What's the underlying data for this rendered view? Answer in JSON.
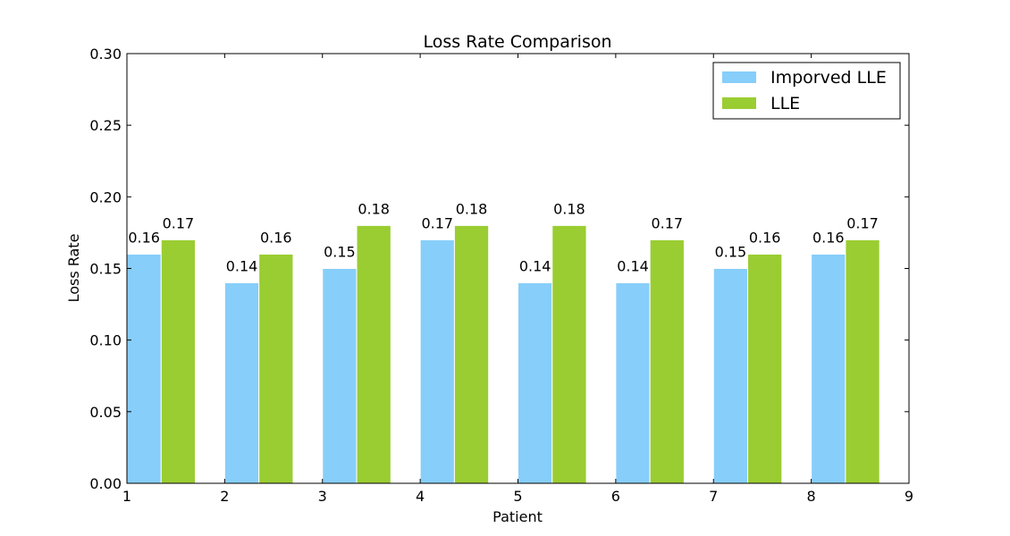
{
  "chart_data": {
    "type": "bar",
    "title": "Loss Rate Comparison",
    "xlabel": "Patient",
    "ylabel": "Loss Rate",
    "xlim": [
      1,
      9
    ],
    "ylim": [
      0,
      0.3
    ],
    "x_ticks": [
      "1",
      "2",
      "3",
      "4",
      "5",
      "6",
      "7",
      "8",
      "9"
    ],
    "y_ticks": [
      "0.00",
      "0.05",
      "0.10",
      "0.15",
      "0.20",
      "0.25",
      "0.30"
    ],
    "categories": [
      1,
      2,
      3,
      4,
      5,
      6,
      7,
      8
    ],
    "series": [
      {
        "name": "Imporved LLE",
        "color": "#87CEFA",
        "values": [
          0.16,
          0.14,
          0.15,
          0.17,
          0.14,
          0.14,
          0.15,
          0.16
        ],
        "labels": [
          "0.16",
          "0.14",
          "0.15",
          "0.17",
          "0.14",
          "0.14",
          "0.15",
          "0.16"
        ]
      },
      {
        "name": "LLE",
        "color": "#9ACD32",
        "values": [
          0.17,
          0.16,
          0.18,
          0.18,
          0.18,
          0.17,
          0.16,
          0.17
        ],
        "labels": [
          "0.17",
          "0.16",
          "0.18",
          "0.18",
          "0.18",
          "0.17",
          "0.16",
          "0.17"
        ]
      }
    ],
    "legend_position": "top-right",
    "grid": false
  }
}
